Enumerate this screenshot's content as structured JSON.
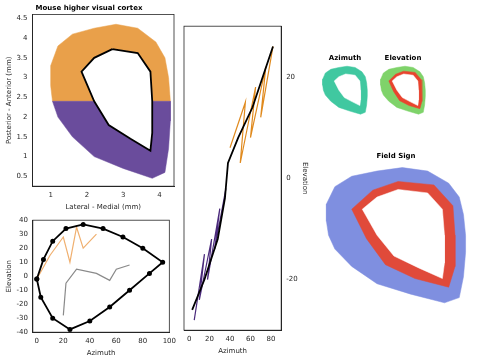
{
  "chart_data": [
    {
      "type": "line",
      "title": "Mouse higher visual cortex",
      "x_label": "Lateral - Medial (mm)",
      "y_label": "Posterior - Anterior (mm)",
      "xlim": [
        0.5,
        4.4
      ],
      "xticks": [
        1,
        2,
        3,
        4
      ],
      "ylim": [
        0.25,
        4.6
      ],
      "yticks": [
        0.5,
        1,
        1.5,
        2,
        2.5,
        3,
        3.5,
        4,
        4.5
      ],
      "grid": false,
      "series": [
        {
          "type": "area",
          "color": "#e9a04a",
          "x": [
            1.05,
            1.0,
            1.0,
            1.2,
            1.6,
            2.2,
            2.8,
            3.4,
            3.9,
            4.15,
            4.25,
            4.3,
            1.05
          ],
          "values": [
            2.4,
            2.8,
            3.3,
            3.8,
            4.1,
            4.25,
            4.35,
            4.25,
            3.9,
            3.5,
            3.0,
            2.4,
            2.4
          ]
        },
        {
          "type": "area",
          "color": "#6a4c9c",
          "x": [
            1.05,
            4.3,
            4.3,
            4.25,
            4.15,
            3.8,
            3.0,
            2.2,
            1.6,
            1.2,
            1.05
          ],
          "values": [
            2.4,
            2.4,
            1.9,
            1.2,
            0.6,
            0.45,
            0.7,
            1.0,
            1.5,
            2.0,
            2.4
          ]
        },
        {
          "type": "area",
          "color": "#ffffff",
          "x": [
            2.7,
            3.4,
            3.75,
            3.8,
            3.8,
            3.75,
            3.2,
            2.6,
            2.2,
            1.85,
            2.2,
            2.7
          ],
          "values": [
            3.72,
            3.62,
            3.15,
            2.4,
            1.6,
            1.15,
            1.45,
            1.8,
            2.4,
            3.15,
            3.5,
            3.72
          ]
        },
        {
          "type": "line",
          "color": "#000000",
          "x": [
            2.7,
            3.4,
            3.75,
            3.8,
            3.8,
            3.75,
            3.2,
            2.6,
            2.2,
            1.85,
            2.2,
            2.7
          ],
          "values": [
            3.72,
            3.62,
            3.15,
            2.4,
            1.6,
            1.15,
            1.45,
            1.8,
            2.4,
            3.15,
            3.5,
            3.72
          ]
        }
      ]
    },
    {
      "type": "line",
      "x_label": "Azimuth",
      "y_label": "Elevation",
      "xlim": [
        -3,
        100
      ],
      "xticks": [
        0,
        20,
        40,
        60,
        80,
        100
      ],
      "ylim": [
        -40,
        40
      ],
      "yticks": [
        -40,
        -30,
        -20,
        -10,
        0,
        10,
        20,
        30,
        40
      ],
      "grid": false,
      "series": [
        {
          "type": "line",
          "color": "#f0b070",
          "x": [
            0,
            10,
            20,
            25,
            30,
            35,
            45
          ],
          "values": [
            -2,
            15,
            28,
            10,
            35,
            20,
            30
          ]
        },
        {
          "type": "line",
          "color": "#8a8a8a",
          "x": [
            20,
            22,
            30,
            45,
            55,
            60,
            70
          ],
          "values": [
            -28,
            -5,
            5,
            2,
            -3,
            5,
            8
          ]
        },
        {
          "type": "line",
          "color": "#000000",
          "marker": "circle",
          "x": [
            0,
            5,
            12,
            22,
            35,
            50,
            65,
            80,
            95,
            85,
            70,
            55,
            40,
            25,
            12,
            3,
            0
          ],
          "values": [
            -2,
            12,
            25,
            34,
            37,
            34,
            28,
            20,
            10,
            2,
            -10,
            -22,
            -32,
            -38,
            -30,
            -15,
            -2
          ]
        }
      ]
    },
    {
      "type": "line",
      "x_label": "Azimuth",
      "y_label": "Elevation",
      "xlim": [
        -5,
        90
      ],
      "xticks": [
        0,
        20,
        40,
        60,
        80
      ],
      "ylim": [
        -30,
        30
      ],
      "yticks": [
        -20,
        0,
        20
      ],
      "grid": false,
      "series": [
        {
          "type": "line",
          "color": "#4b2a7c",
          "x": [
            5,
            15,
            10,
            22,
            18,
            30,
            25,
            36
          ],
          "values": [
            -28,
            -15,
            -24,
            -12,
            -20,
            -6,
            -14,
            -2
          ]
        },
        {
          "type": "line",
          "color": "#e08a1e",
          "x": [
            40,
            55,
            50,
            65,
            60,
            75,
            70,
            82
          ],
          "values": [
            6,
            15,
            3,
            18,
            8,
            22,
            12,
            26
          ]
        },
        {
          "type": "line",
          "color": "#000000",
          "x": [
            3,
            15,
            28,
            35,
            38,
            48,
            62,
            82
          ],
          "values": [
            -26,
            -20,
            -12,
            -4,
            3,
            8,
            14,
            26
          ]
        }
      ]
    },
    {
      "type": "line",
      "title": "Azimuth",
      "tick_labels": false,
      "xlim": [
        0.8,
        4.5
      ],
      "ylim": [
        0.3,
        4.5
      ],
      "series": [
        {
          "type": "area",
          "color": "#40c8a0",
          "x": [
            2.8,
            2.2,
            1.6,
            1.2,
            1.0,
            1.0,
            1.05,
            1.2,
            1.6,
            2.2,
            3.0,
            3.8,
            4.15,
            4.25,
            4.3,
            4.3,
            4.25,
            4.15,
            3.9,
            3.4,
            2.8
          ],
          "values": [
            4.35,
            4.25,
            4.1,
            3.8,
            3.3,
            2.8,
            2.4,
            2.0,
            1.5,
            1.0,
            0.7,
            0.45,
            0.6,
            1.2,
            1.9,
            2.4,
            3.0,
            3.5,
            3.9,
            4.25,
            4.35
          ]
        },
        {
          "type": "area",
          "color": "#ffffff",
          "x": [
            2.7,
            3.4,
            3.75,
            3.8,
            3.8,
            3.75,
            3.2,
            2.6,
            2.2,
            1.85,
            2.2,
            2.7
          ],
          "values": [
            3.72,
            3.62,
            3.15,
            2.4,
            1.6,
            1.15,
            1.45,
            1.8,
            2.4,
            3.15,
            3.5,
            3.72
          ]
        }
      ]
    },
    {
      "type": "line",
      "title": "Elevation",
      "tick_labels": false,
      "xlim": [
        0.8,
        4.5
      ],
      "ylim": [
        0.3,
        4.5
      ],
      "series": [
        {
          "type": "area",
          "color": "#7fd36a",
          "x": [
            2.8,
            2.2,
            1.6,
            1.2,
            1.0,
            1.0,
            1.05,
            1.2,
            1.6,
            2.2,
            3.0,
            3.8,
            4.15,
            4.25,
            4.3,
            4.3,
            4.25,
            4.15,
            3.9,
            3.4,
            2.8
          ],
          "values": [
            4.35,
            4.25,
            4.1,
            3.8,
            3.3,
            2.8,
            2.4,
            2.0,
            1.5,
            1.0,
            0.7,
            0.45,
            0.6,
            1.2,
            1.9,
            2.4,
            3.0,
            3.5,
            3.9,
            4.25,
            4.35
          ]
        },
        {
          "type": "area",
          "color": "#e8442e",
          "x": [
            2.7,
            3.55,
            4.0,
            4.05,
            4.05,
            3.9,
            3.1,
            2.4,
            1.95,
            1.6,
            2.1,
            2.7
          ],
          "values": [
            3.95,
            3.85,
            3.25,
            2.4,
            1.5,
            0.9,
            1.15,
            1.55,
            2.3,
            3.15,
            3.7,
            3.95
          ]
        },
        {
          "type": "area",
          "color": "#ffffff",
          "x": [
            2.7,
            3.4,
            3.75,
            3.8,
            3.8,
            3.75,
            3.2,
            2.6,
            2.2,
            1.85,
            2.2,
            2.7
          ],
          "values": [
            3.72,
            3.62,
            3.15,
            2.4,
            1.6,
            1.15,
            1.45,
            1.8,
            2.4,
            3.15,
            3.5,
            3.72
          ]
        }
      ]
    },
    {
      "type": "line",
      "title": "Field Sign",
      "tick_labels": false,
      "xlim": [
        0.8,
        4.5
      ],
      "ylim": [
        0.3,
        4.5
      ],
      "series": [
        {
          "type": "area",
          "color": "#7f8fe0",
          "x": [
            2.8,
            2.2,
            1.6,
            1.2,
            1.0,
            1.0,
            1.05,
            1.2,
            1.6,
            2.2,
            3.0,
            3.8,
            4.15,
            4.25,
            4.3,
            4.3,
            4.25,
            4.15,
            3.9,
            3.4,
            2.8
          ],
          "values": [
            4.35,
            4.25,
            4.1,
            3.8,
            3.3,
            2.8,
            2.4,
            2.0,
            1.5,
            1.0,
            0.7,
            0.45,
            0.6,
            1.2,
            1.9,
            2.4,
            3.0,
            3.5,
            3.9,
            4.25,
            4.35
          ]
        },
        {
          "type": "area",
          "color": "#e04a3a",
          "x": [
            2.7,
            3.55,
            4.0,
            4.05,
            4.05,
            3.9,
            3.1,
            2.4,
            1.95,
            1.6,
            2.1,
            2.7
          ],
          "values": [
            3.95,
            3.85,
            3.25,
            2.4,
            1.5,
            0.9,
            1.15,
            1.55,
            2.3,
            3.15,
            3.7,
            3.95
          ]
        },
        {
          "type": "area",
          "color": "#ffffff",
          "x": [
            2.7,
            3.4,
            3.75,
            3.8,
            3.8,
            3.75,
            3.2,
            2.6,
            2.2,
            1.85,
            2.2,
            2.7
          ],
          "values": [
            3.72,
            3.62,
            3.15,
            2.4,
            1.6,
            1.15,
            1.45,
            1.8,
            2.4,
            3.15,
            3.5,
            3.72
          ]
        }
      ]
    }
  ]
}
